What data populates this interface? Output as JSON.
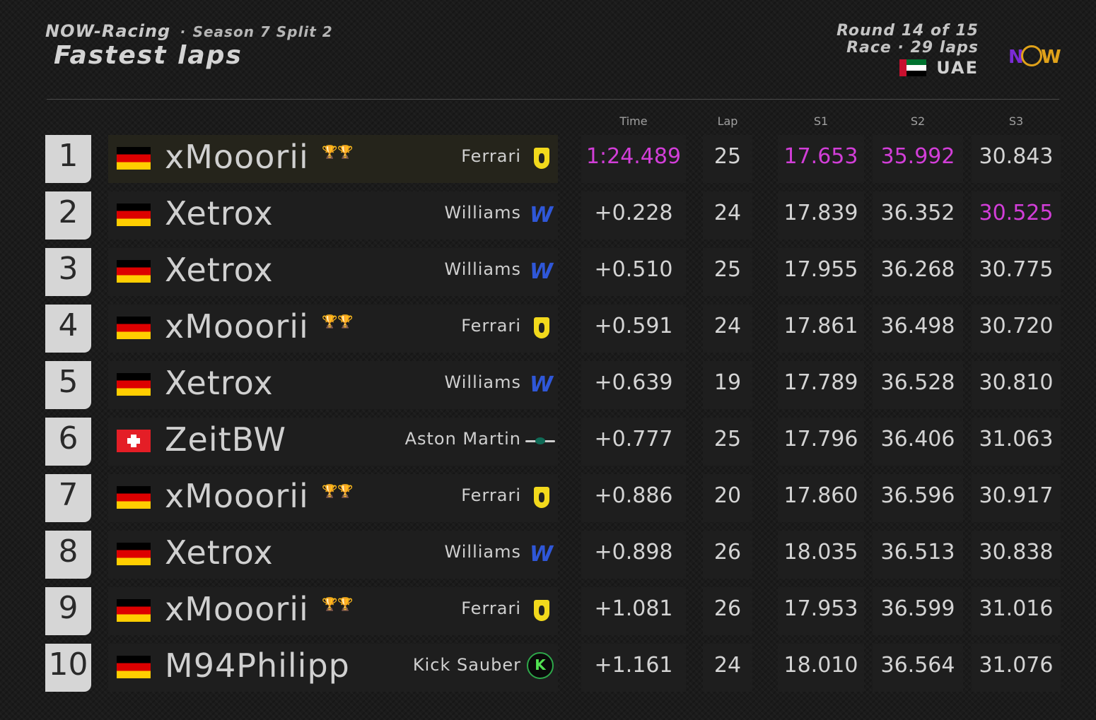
{
  "header": {
    "brand": "NOW-Racing",
    "separator": "·",
    "season": "Season 7 Split 2",
    "title": "Fastest laps",
    "round": "Round 14 of 15",
    "session": "Race · 29 laps",
    "country": "UAE",
    "logo_n": "N",
    "logo_w": "W",
    "colors": {
      "purple": "#d23ed8",
      "gold": "#e0a21a",
      "williams_blue": "#2f57d8"
    }
  },
  "columns": {
    "time": "Time",
    "lap": "Lap",
    "s1": "S1",
    "s2": "S2",
    "s3": "S3"
  },
  "rows": [
    {
      "pos": "1",
      "flag": "germany-flag",
      "driver": "xMooorii",
      "trophies": "🏆🏆",
      "team": "Ferrari",
      "team_logo": "ferrari-logo",
      "time": "1:24.489",
      "lap": "25",
      "s1": "17.653",
      "s2": "35.992",
      "s3": "30.843",
      "highlight": true,
      "purple_time": true,
      "purple_s1": true,
      "purple_s2": true,
      "purple_s3": false
    },
    {
      "pos": "2",
      "flag": "germany-flag",
      "driver": "Xetrox",
      "trophies": "",
      "team": "Williams",
      "team_logo": "williams-logo",
      "time": "+0.228",
      "lap": "24",
      "s1": "17.839",
      "s2": "36.352",
      "s3": "30.525",
      "highlight": false,
      "purple_time": false,
      "purple_s1": false,
      "purple_s2": false,
      "purple_s3": true
    },
    {
      "pos": "3",
      "flag": "germany-flag",
      "driver": "Xetrox",
      "trophies": "",
      "team": "Williams",
      "team_logo": "williams-logo",
      "time": "+0.510",
      "lap": "25",
      "s1": "17.955",
      "s2": "36.268",
      "s3": "30.775",
      "highlight": false,
      "purple_time": false,
      "purple_s1": false,
      "purple_s2": false,
      "purple_s3": false
    },
    {
      "pos": "4",
      "flag": "germany-flag",
      "driver": "xMooorii",
      "trophies": "🏆🏆",
      "team": "Ferrari",
      "team_logo": "ferrari-logo",
      "time": "+0.591",
      "lap": "24",
      "s1": "17.861",
      "s2": "36.498",
      "s3": "30.720",
      "highlight": false,
      "purple_time": false,
      "purple_s1": false,
      "purple_s2": false,
      "purple_s3": false
    },
    {
      "pos": "5",
      "flag": "germany-flag",
      "driver": "Xetrox",
      "trophies": "",
      "team": "Williams",
      "team_logo": "williams-logo",
      "time": "+0.639",
      "lap": "19",
      "s1": "17.789",
      "s2": "36.528",
      "s3": "30.810",
      "highlight": false,
      "purple_time": false,
      "purple_s1": false,
      "purple_s2": false,
      "purple_s3": false
    },
    {
      "pos": "6",
      "flag": "switzerland-flag",
      "driver": "ZeitBW",
      "trophies": "",
      "team": "Aston Martin",
      "team_logo": "aston-martin-logo",
      "time": "+0.777",
      "lap": "25",
      "s1": "17.796",
      "s2": "36.406",
      "s3": "31.063",
      "highlight": false,
      "purple_time": false,
      "purple_s1": false,
      "purple_s2": false,
      "purple_s3": false
    },
    {
      "pos": "7",
      "flag": "germany-flag",
      "driver": "xMooorii",
      "trophies": "🏆🏆",
      "team": "Ferrari",
      "team_logo": "ferrari-logo",
      "time": "+0.886",
      "lap": "20",
      "s1": "17.860",
      "s2": "36.596",
      "s3": "30.917",
      "highlight": false,
      "purple_time": false,
      "purple_s1": false,
      "purple_s2": false,
      "purple_s3": false
    },
    {
      "pos": "8",
      "flag": "germany-flag",
      "driver": "Xetrox",
      "trophies": "",
      "team": "Williams",
      "team_logo": "williams-logo",
      "time": "+0.898",
      "lap": "26",
      "s1": "18.035",
      "s2": "36.513",
      "s3": "30.838",
      "highlight": false,
      "purple_time": false,
      "purple_s1": false,
      "purple_s2": false,
      "purple_s3": false
    },
    {
      "pos": "9",
      "flag": "germany-flag",
      "driver": "xMooorii",
      "trophies": "🏆🏆",
      "team": "Ferrari",
      "team_logo": "ferrari-logo",
      "time": "+1.081",
      "lap": "26",
      "s1": "17.953",
      "s2": "36.599",
      "s3": "31.016",
      "highlight": false,
      "purple_time": false,
      "purple_s1": false,
      "purple_s2": false,
      "purple_s3": false
    },
    {
      "pos": "10",
      "flag": "germany-flag",
      "driver": "M94Philipp",
      "trophies": "",
      "team": "Kick Sauber",
      "team_logo": "kick-sauber-logo",
      "team_logo_text": "K",
      "time": "+1.161",
      "lap": "24",
      "s1": "18.010",
      "s2": "36.564",
      "s3": "31.076",
      "highlight": false,
      "purple_time": false,
      "purple_s1": false,
      "purple_s2": false,
      "purple_s3": false
    }
  ]
}
